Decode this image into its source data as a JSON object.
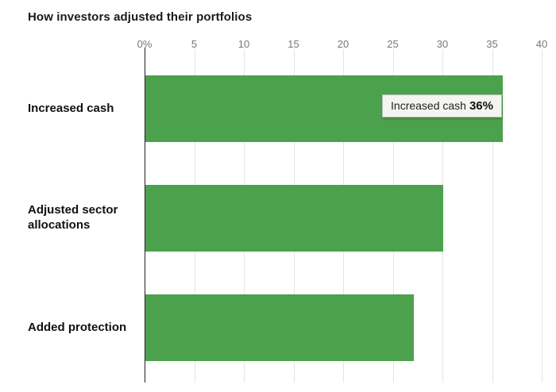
{
  "chart": {
    "tooltip_label": "Increased cash",
    "tooltip_value": "36%"
  },
  "chart_data": {
    "type": "bar",
    "orientation": "horizontal",
    "title": "How investors adjusted their portfolios",
    "categories": [
      "Increased cash",
      "Adjusted sector allocations",
      "Added protection"
    ],
    "values": [
      36,
      30,
      27
    ],
    "unit": "%",
    "xlabel": "",
    "ylabel": "",
    "xlim": [
      0,
      40
    ],
    "ticks": [
      {
        "value": 0,
        "label": "0%"
      },
      {
        "value": 5,
        "label": "5"
      },
      {
        "value": 10,
        "label": "10"
      },
      {
        "value": 15,
        "label": "15"
      },
      {
        "value": 20,
        "label": "20"
      },
      {
        "value": 25,
        "label": "25"
      },
      {
        "value": 30,
        "label": "30"
      },
      {
        "value": 35,
        "label": "35"
      },
      {
        "value": 40,
        "label": "40"
      }
    ],
    "grid": true,
    "legend": false,
    "colors": {
      "bar": "#4ca14c",
      "grid": "#e4e4e4",
      "axis": "#222222",
      "tick_text": "#777777"
    }
  }
}
